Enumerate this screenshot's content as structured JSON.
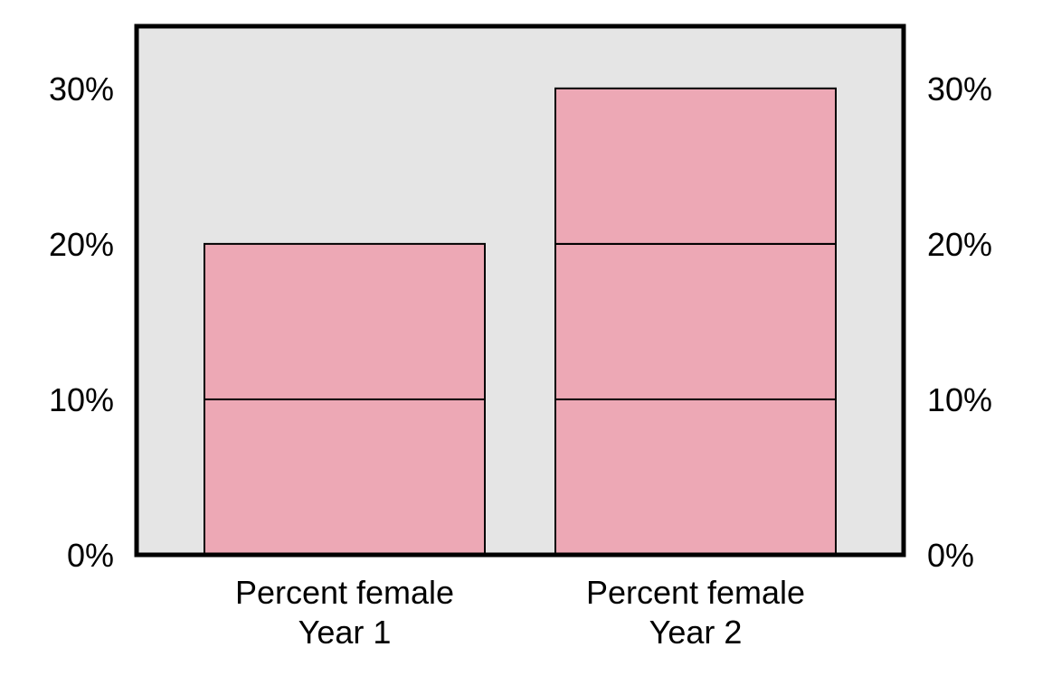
{
  "chart_data": {
    "type": "bar",
    "categories": [
      "Percent female\nYear 1",
      "Percent female\nYear 2"
    ],
    "values": [
      20,
      30
    ],
    "segments": [
      [
        10,
        10
      ],
      [
        10,
        10,
        10
      ]
    ],
    "ylim": [
      0,
      34
    ],
    "yticks": [
      0,
      10,
      20,
      30
    ],
    "ytick_labels": [
      "0%",
      "10%",
      "20%",
      "30%"
    ],
    "title": "",
    "xlabel": "",
    "ylabel": "",
    "grid": false,
    "legend": "none",
    "colors": {
      "bar_fill": "#eda8b5",
      "bar_stroke": "#000000",
      "plot_background": "#e5e5e5",
      "frame": "#000000"
    }
  }
}
